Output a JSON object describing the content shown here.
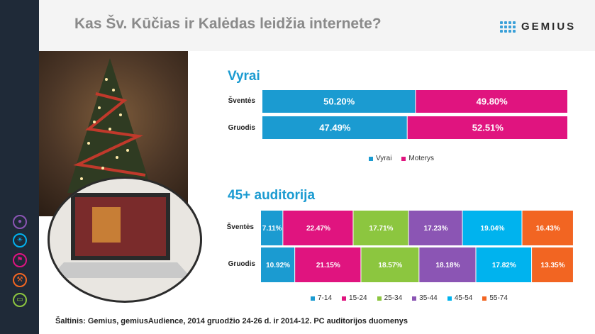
{
  "header": {
    "title": "Kas Šv. Kūčias ir Kalėdas leidžia internete?",
    "logo_text": "GEMIUS"
  },
  "sidebar": {
    "icons": [
      "people-icon",
      "lightbulb-icon",
      "flag-icon",
      "tools-icon",
      "clipboard-icon"
    ]
  },
  "chart_data": [
    {
      "type": "bar",
      "stacked": true,
      "orientation": "horizontal",
      "title": "Vyrai",
      "categories": [
        "Šventės",
        "Gruodis"
      ],
      "series": [
        {
          "name": "Vyrai",
          "values": [
            50.2,
            47.49
          ],
          "color": "#1b9bd1"
        },
        {
          "name": "Moterys",
          "values": [
            49.8,
            52.51
          ],
          "color": "#e0147f"
        }
      ]
    },
    {
      "type": "bar",
      "stacked": true,
      "orientation": "horizontal",
      "title": "45+ auditorija",
      "categories": [
        "Šventės",
        "Gruodis"
      ],
      "series": [
        {
          "name": "7-14",
          "values": [
            7.11,
            10.92
          ],
          "color": "#1b9bd1"
        },
        {
          "name": "15-24",
          "values": [
            22.47,
            21.15
          ],
          "color": "#e0147f"
        },
        {
          "name": "25-34",
          "values": [
            17.71,
            18.57
          ],
          "color": "#8cc63f"
        },
        {
          "name": "35-44",
          "values": [
            17.23,
            18.18
          ],
          "color": "#8b55b4"
        },
        {
          "name": "45-54",
          "values": [
            19.04,
            17.82
          ],
          "color": "#00b3ee"
        },
        {
          "name": "55-74",
          "values": [
            16.43,
            13.35
          ],
          "color": "#f26522"
        }
      ]
    }
  ],
  "source": "Šaltinis: Gemius, gemiusAudience, 2014 gruodžio 24-26 d. ir 2014-12. PC auditorijos duomenys"
}
